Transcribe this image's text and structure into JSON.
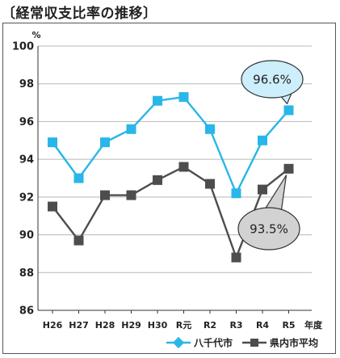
{
  "title": "〔経常収支比率の推移〕",
  "chart_data": {
    "type": "line",
    "title": "〔経常収支比率の推移〕",
    "ylabel": "%",
    "xlabel": "年度",
    "categories": [
      "H26",
      "H27",
      "H28",
      "H29",
      "H30",
      "R元",
      "R2",
      "R3",
      "R4",
      "R5"
    ],
    "ylim": [
      86,
      100
    ],
    "yticks": [
      86,
      88,
      90,
      92,
      94,
      96,
      98,
      100
    ],
    "grid": true,
    "legend": "bottom-right",
    "series": [
      {
        "name": "八千代市",
        "color": "#29b6e8",
        "marker": "diamond",
        "values": [
          94.9,
          93.0,
          94.9,
          95.6,
          97.1,
          97.3,
          95.6,
          92.2,
          95.0,
          96.6
        ]
      },
      {
        "name": "県内市平均",
        "color": "#4d4d4d",
        "marker": "square",
        "values": [
          91.5,
          89.7,
          92.1,
          92.1,
          92.9,
          93.6,
          92.7,
          88.8,
          92.4,
          93.5
        ]
      }
    ],
    "annotations": [
      "96.6%",
      "93.5%"
    ]
  }
}
